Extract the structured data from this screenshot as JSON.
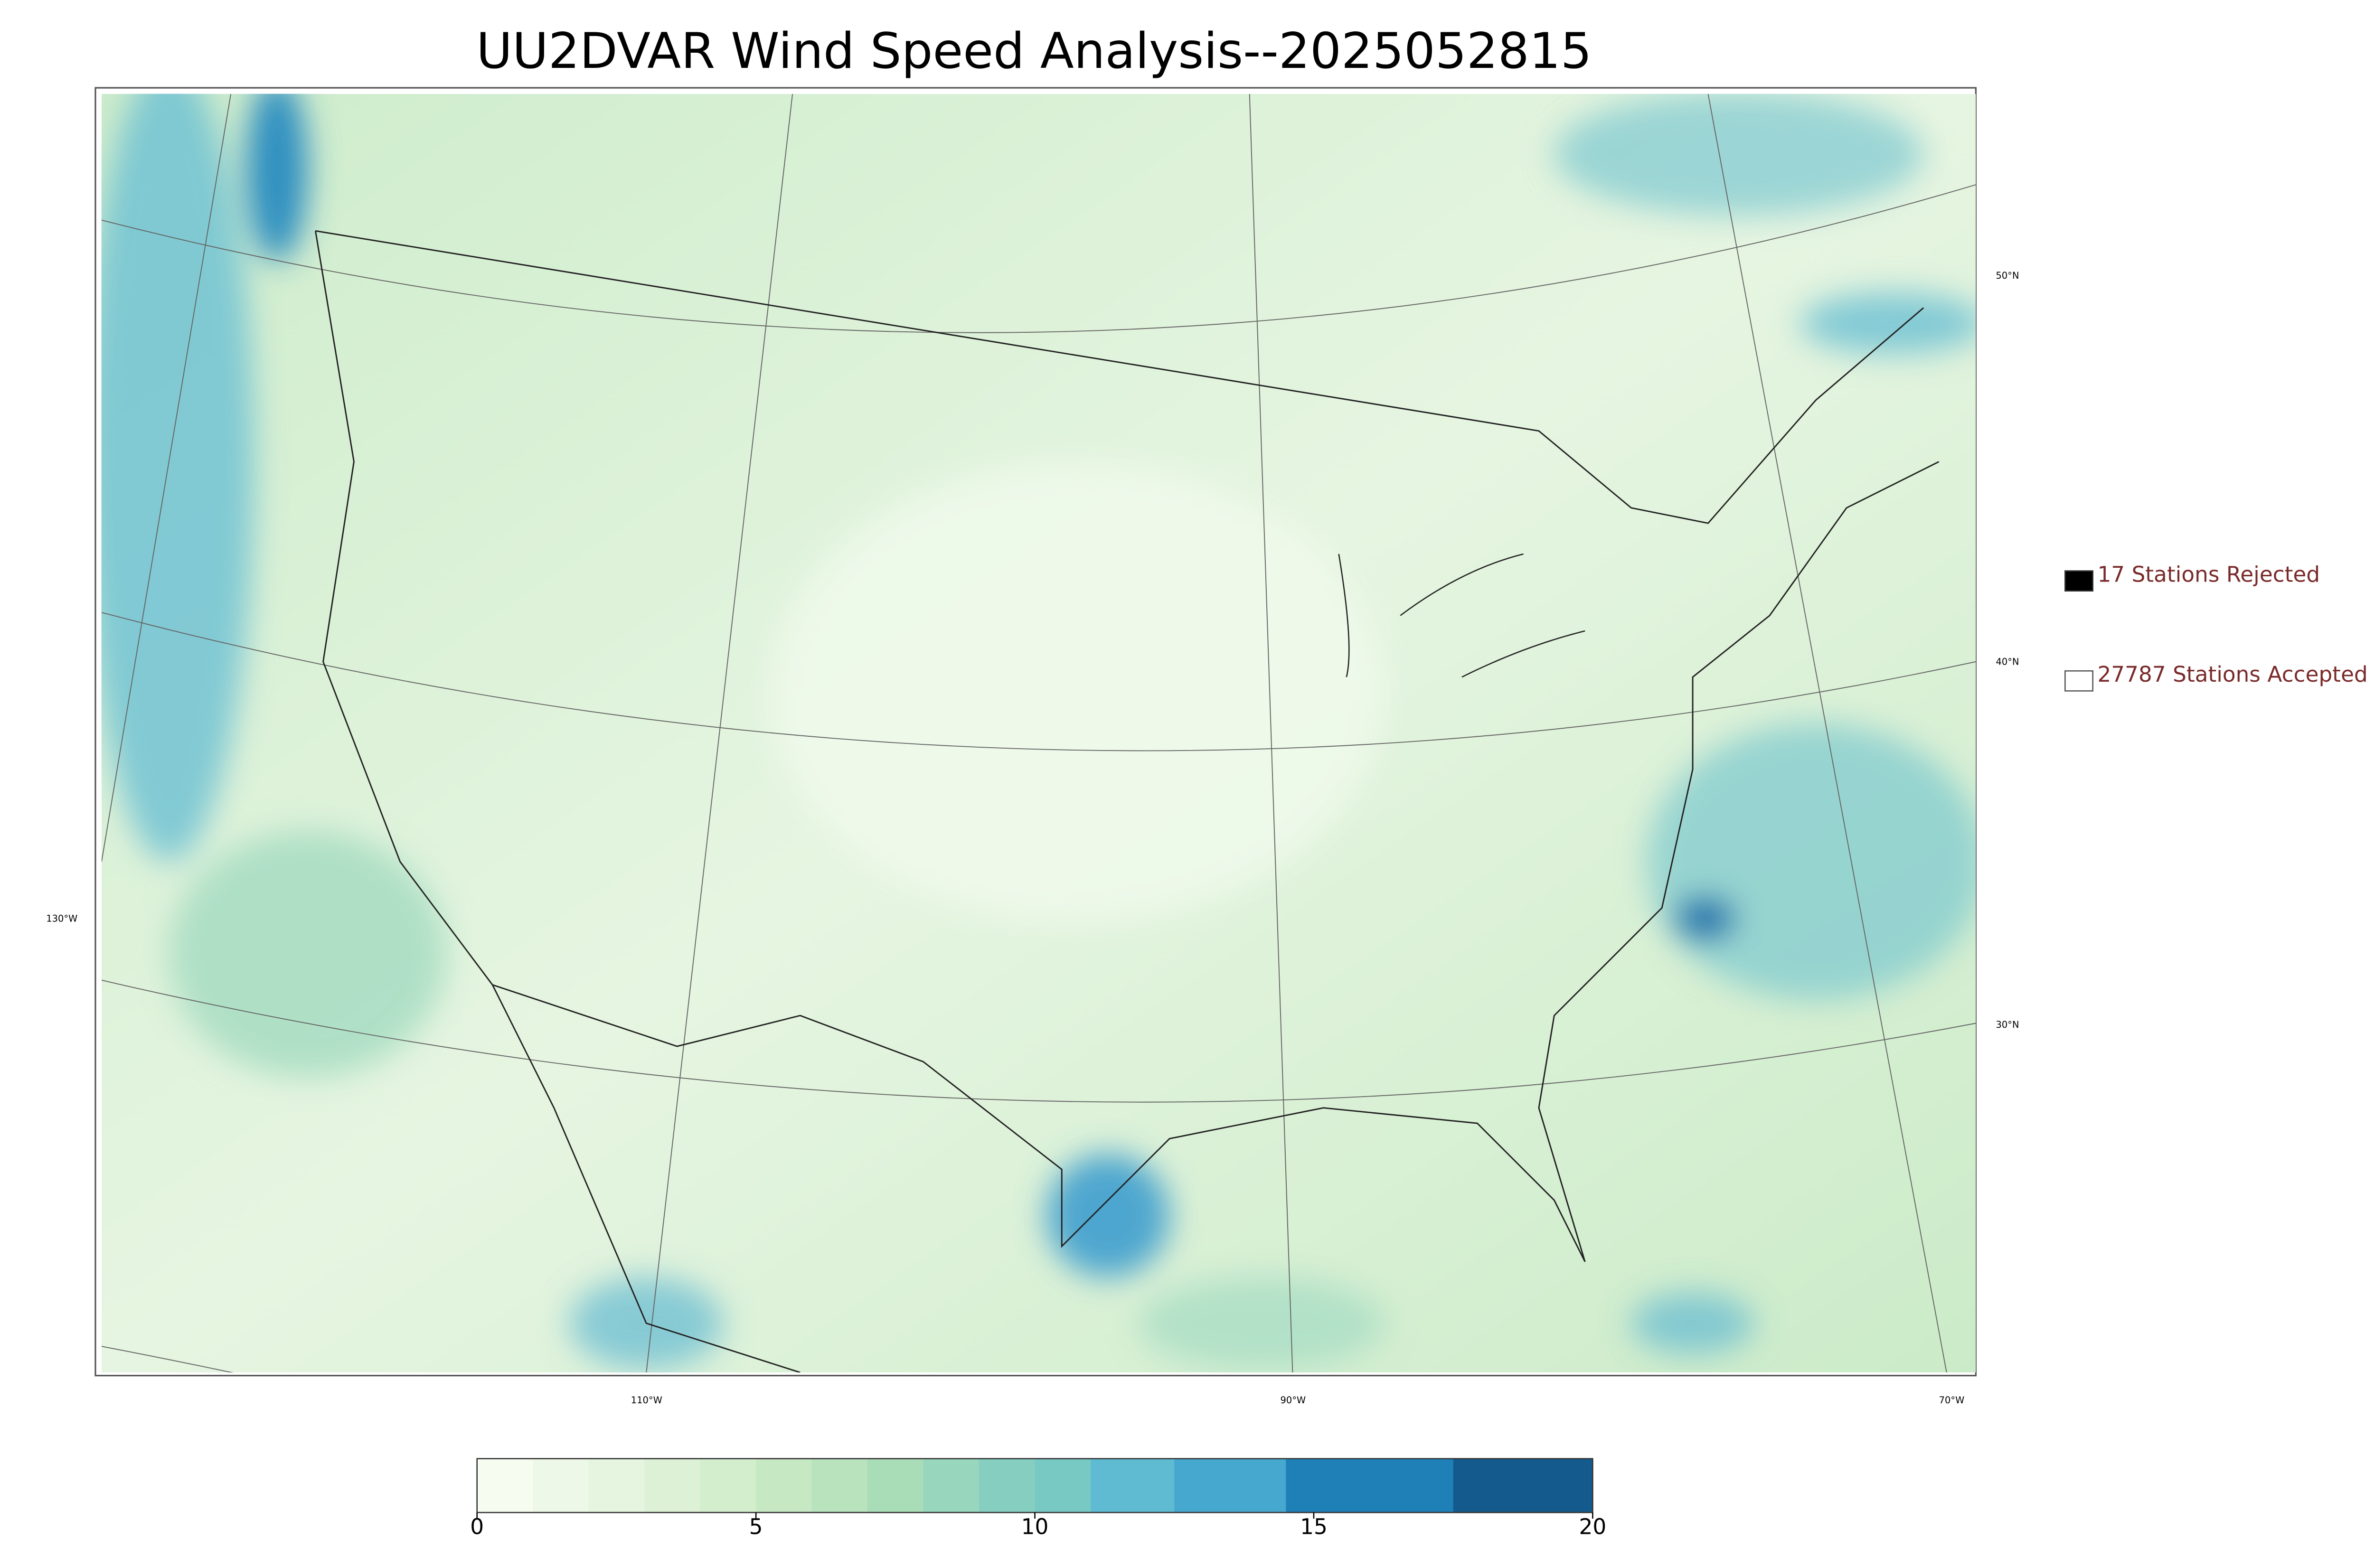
{
  "title": "UU2DVAR Wind Speed Analysis--2025052815",
  "legend": {
    "items": [
      {
        "label": "17 Stations Rejected",
        "color": "#000000"
      },
      {
        "label": "27787 Stations Accepted",
        "color": "#ffffff"
      }
    ]
  },
  "map": {
    "lat_labels": [
      "50°N",
      "40°N",
      "30°N"
    ],
    "lon_labels": [
      "130°W",
      "110°W",
      "90°W",
      "70°W"
    ]
  },
  "colorbar": {
    "lim": [
      0,
      20
    ],
    "ticks": [
      0,
      5,
      10,
      15,
      20
    ],
    "levels": [
      0,
      1,
      2,
      3,
      4,
      5,
      6,
      7,
      8,
      9,
      10,
      11,
      12.5,
      14.5,
      17.5,
      20
    ],
    "colors": [
      "#f7fcf0",
      "#eef8e8",
      "#e5f5df",
      "#dcf1d6",
      "#d3eecd",
      "#c6e9c4",
      "#b8e3bd",
      "#a9ddb7",
      "#98d6bd",
      "#86cfc0",
      "#78c8c4",
      "#5fbbd2",
      "#46a7cf",
      "#1f80b8",
      "#145a8c"
    ]
  }
}
